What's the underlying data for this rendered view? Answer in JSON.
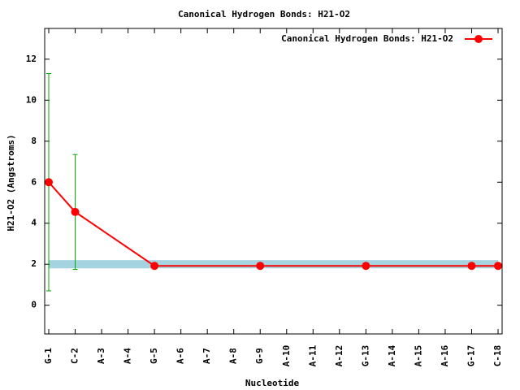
{
  "chart_data": {
    "type": "line",
    "title": "Canonical Hydrogen Bonds: H21-O2",
    "x_label": "Nucleotide",
    "y_label": "H21-O2 (Angstroms)",
    "categories": [
      "G-1",
      "C-2",
      "A-3",
      "A-4",
      "G-5",
      "A-6",
      "A-7",
      "A-8",
      "G-9",
      "A-10",
      "A-11",
      "A-12",
      "G-13",
      "A-14",
      "A-15",
      "A-16",
      "G-17",
      "C-18"
    ],
    "series": [
      {
        "name": "Canonical Hydrogen Bonds: H21-O2",
        "color": "#ff0000",
        "error_color": "#00aa00",
        "x": [
          "G-1",
          "C-2",
          "G-5",
          "G-9",
          "G-13",
          "G-17",
          "C-18"
        ],
        "values": [
          6.0,
          4.55,
          1.92,
          1.92,
          1.92,
          1.92,
          1.92
        ],
        "errors": [
          5.3,
          2.8,
          0,
          0,
          0,
          0,
          0
        ]
      }
    ],
    "reference_band": {
      "range": [
        1.8,
        2.2
      ],
      "color": "#a6d3e0"
    },
    "ylim": [
      -1.4,
      13.5
    ],
    "yticks": [
      0,
      2,
      4,
      6,
      8,
      10,
      12
    ],
    "legend": "top-right"
  }
}
